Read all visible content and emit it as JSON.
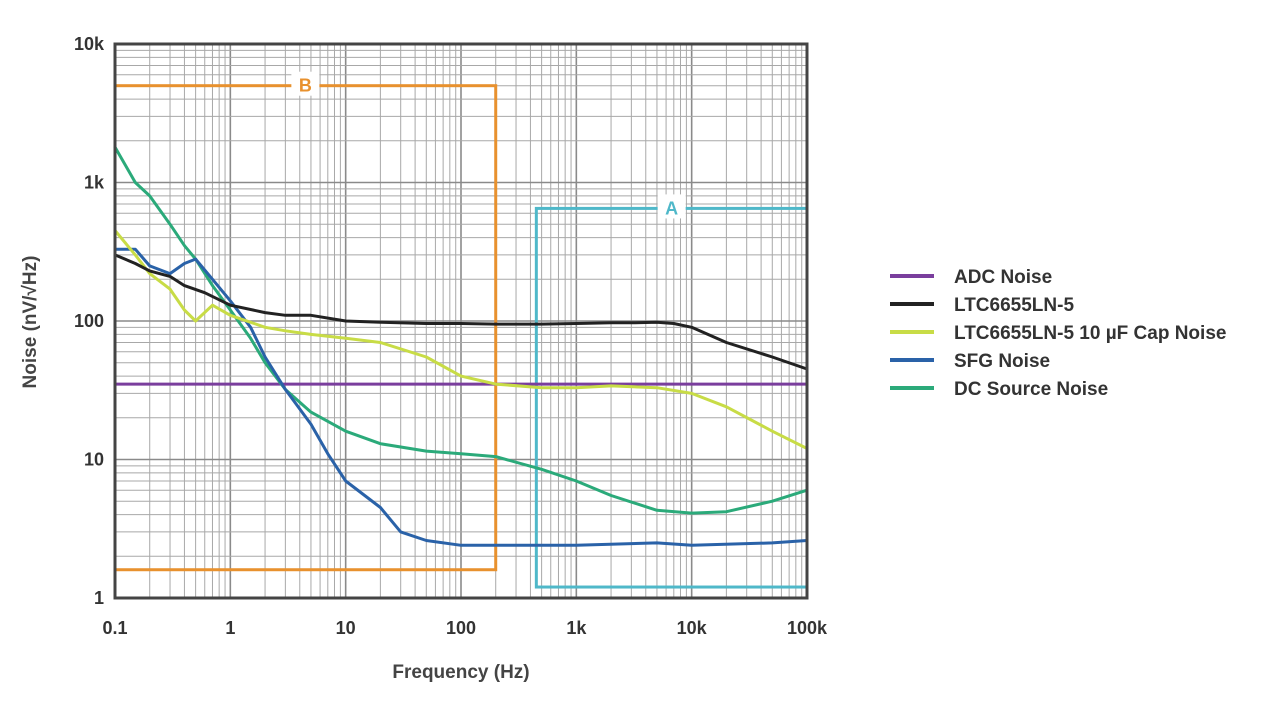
{
  "chart_data": {
    "type": "line",
    "xlabel": "Frequency (Hz)",
    "ylabel": "Noise (nV/√Hz)",
    "xscale": "log",
    "yscale": "log",
    "xlim": [
      0.1,
      100000
    ],
    "ylim": [
      1,
      10000
    ],
    "grid": true,
    "legend_position": "right",
    "x_ticks": [
      "0.1",
      "1",
      "10",
      "100",
      "1k",
      "10k",
      "100k"
    ],
    "y_ticks": [
      "1",
      "10",
      "100",
      "1k",
      "10k"
    ],
    "regions": [
      {
        "label": "B",
        "x": [
          0.1,
          200
        ],
        "y": [
          1.6,
          5000
        ],
        "color": "#e8912e"
      },
      {
        "label": "A",
        "x": [
          450,
          100000
        ],
        "y": [
          1.2,
          650
        ],
        "color": "#4fb8c9"
      }
    ],
    "series": [
      {
        "name": "ADC Noise",
        "color": "#7a3e9d",
        "x": [
          0.1,
          100000
        ],
        "y": [
          35,
          35
        ]
      },
      {
        "name": "LTC6655LN-5",
        "color": "#222222",
        "x": [
          0.1,
          0.15,
          0.2,
          0.3,
          0.4,
          0.6,
          1,
          2,
          3,
          5,
          10,
          20,
          50,
          100,
          200,
          500,
          1000,
          2000,
          3000,
          5000,
          7000,
          10000,
          20000,
          50000,
          100000
        ],
        "y": [
          300,
          260,
          230,
          210,
          180,
          160,
          130,
          115,
          110,
          110,
          100,
          98,
          96,
          96,
          95,
          95,
          96,
          97,
          97,
          98,
          96,
          90,
          70,
          55,
          45
        ]
      },
      {
        "name": "LTC6655LN-5 10 µF Cap Noise",
        "color": "#c8dc46",
        "x": [
          0.1,
          0.15,
          0.2,
          0.3,
          0.4,
          0.5,
          0.7,
          1,
          2,
          3,
          5,
          10,
          20,
          50,
          100,
          200,
          500,
          1000,
          2000,
          5000,
          10000,
          20000,
          50000,
          100000
        ],
        "y": [
          450,
          300,
          220,
          170,
          120,
          100,
          130,
          110,
          90,
          85,
          80,
          75,
          70,
          55,
          40,
          35,
          33,
          33,
          34,
          33,
          30,
          24,
          16,
          12
        ]
      },
      {
        "name": "SFG Noise",
        "color": "#2a62a8",
        "x": [
          0.1,
          0.15,
          0.2,
          0.3,
          0.4,
          0.5,
          0.7,
          1,
          1.5,
          2,
          3,
          5,
          7,
          10,
          20,
          30,
          50,
          100,
          200,
          500,
          1000,
          5000,
          10000,
          50000,
          100000
        ],
        "y": [
          330,
          330,
          250,
          220,
          260,
          280,
          200,
          140,
          90,
          55,
          32,
          18,
          11,
          7,
          4.5,
          3,
          2.6,
          2.4,
          2.4,
          2.4,
          2.4,
          2.5,
          2.4,
          2.5,
          2.6
        ]
      },
      {
        "name": "DC Source Noise",
        "color": "#2baa7a",
        "x": [
          0.1,
          0.15,
          0.2,
          0.3,
          0.4,
          0.5,
          0.7,
          1,
          1.5,
          2,
          3,
          5,
          10,
          20,
          50,
          100,
          200,
          500,
          1000,
          2000,
          5000,
          10000,
          20000,
          50000,
          100000
        ],
        "y": [
          1800,
          1000,
          800,
          500,
          350,
          280,
          180,
          120,
          75,
          50,
          32,
          22,
          16,
          13,
          11.5,
          11,
          10.5,
          8.5,
          7,
          5.5,
          4.3,
          4.1,
          4.2,
          5,
          6
        ]
      }
    ]
  }
}
